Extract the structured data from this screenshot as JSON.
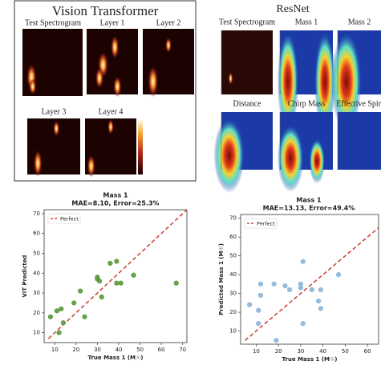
{
  "vit_figure": {
    "title": "Vision Transformer",
    "panels": [
      "Test Spectrogram",
      "Layer 1",
      "Layer 2",
      "Layer 3",
      "Layer 4"
    ]
  },
  "resnet_figure": {
    "title": "ResNet",
    "panels": [
      "Test Spectrogram",
      "Mass 1",
      "Mass 2",
      "Distance",
      "Chirp Mass",
      "Effective Spin"
    ]
  },
  "chart_data": [
    {
      "type": "scatter",
      "title": "Mass 1",
      "subtitle": "MAE=8.10, Error=25.3%",
      "x_label": "True Mass 1 (M☉)",
      "y_label": "ViT Predicted",
      "color": "#5b9a3c",
      "x": [
        8,
        11,
        13,
        12,
        14,
        19,
        22,
        24,
        30,
        30,
        31,
        32,
        36,
        39,
        39,
        41,
        47,
        67
      ],
      "values": [
        18,
        21,
        22,
        10,
        15,
        25,
        31,
        18,
        37,
        38,
        36,
        28,
        45,
        46,
        35,
        35,
        39,
        35
      ],
      "reference_line": {
        "name": "Perfect",
        "color": "#cc4a3c"
      },
      "legend": "upper left",
      "xlim": [
        5,
        72
      ],
      "ylim": [
        5,
        72
      ],
      "xticks": [
        10,
        20,
        30,
        40,
        50,
        60,
        70
      ],
      "yticks": [
        10,
        20,
        30,
        40,
        50,
        60,
        70
      ]
    },
    {
      "type": "scatter",
      "title": "Mass 1",
      "subtitle": "MAE=13.13, Error=49.4%",
      "x_label": "True Mass 1 (M☉)",
      "y_label": "Predicted Mass 1 (M☉)",
      "color": "#8db6d9",
      "x": [
        7,
        11,
        11,
        12,
        12,
        18,
        19,
        23,
        25,
        30,
        30,
        31,
        31,
        35,
        38,
        39,
        39,
        47
      ],
      "values": [
        24,
        14,
        21,
        35,
        29,
        35,
        5,
        34,
        32,
        35,
        33,
        14,
        47,
        32,
        26,
        22,
        32,
        40
      ],
      "reference_line": {
        "name": "Perfect",
        "color": "#cc4a3c"
      },
      "legend": "upper left",
      "xlim": [
        3,
        65
      ],
      "ylim": [
        3,
        72
      ],
      "xticks": [
        10,
        20,
        30,
        40,
        50,
        60
      ],
      "yticks": [
        10,
        20,
        30,
        40,
        50,
        60,
        70
      ]
    }
  ]
}
